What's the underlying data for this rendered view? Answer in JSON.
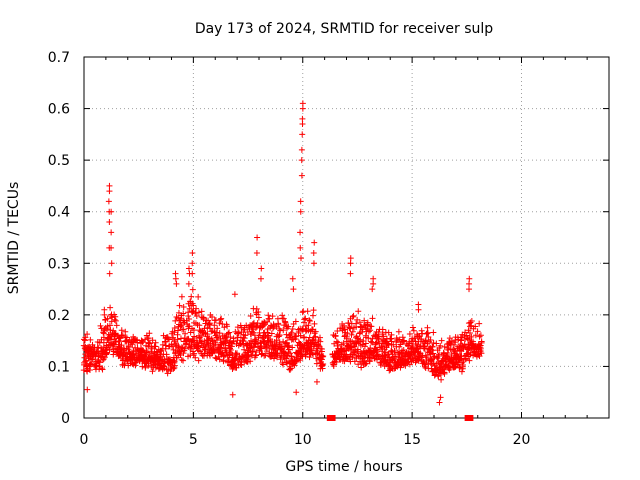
{
  "chart_data": {
    "type": "scatter",
    "title": "Day 173 of 2024, SRMTID for receiver sulp",
    "xlabel": "GPS time / hours",
    "ylabel": "SRMTID / TECUs",
    "xlim": [
      0,
      24
    ],
    "ylim": [
      0,
      0.7
    ],
    "xticks": [
      0,
      5,
      10,
      15,
      20
    ],
    "yticks": [
      0,
      0.1,
      0.2,
      0.3,
      0.4,
      0.5,
      0.6,
      0.7
    ],
    "grid": true,
    "marker": "plus",
    "series_color": "#ff0000",
    "envelope": [
      {
        "x": 0.0,
        "lo": 0.07,
        "hi": 0.19
      },
      {
        "x": 0.5,
        "lo": 0.08,
        "hi": 0.17
      },
      {
        "x": 0.9,
        "lo": 0.07,
        "hi": 0.22
      },
      {
        "x": 1.2,
        "lo": 0.1,
        "hi": 0.26
      },
      {
        "x": 1.6,
        "lo": 0.09,
        "hi": 0.2
      },
      {
        "x": 2.0,
        "lo": 0.08,
        "hi": 0.19
      },
      {
        "x": 2.5,
        "lo": 0.09,
        "hi": 0.17
      },
      {
        "x": 3.0,
        "lo": 0.07,
        "hi": 0.19
      },
      {
        "x": 3.5,
        "lo": 0.08,
        "hi": 0.17
      },
      {
        "x": 4.0,
        "lo": 0.06,
        "hi": 0.2
      },
      {
        "x": 4.4,
        "lo": 0.07,
        "hi": 0.27
      },
      {
        "x": 4.9,
        "lo": 0.09,
        "hi": 0.3
      },
      {
        "x": 5.3,
        "lo": 0.08,
        "hi": 0.26
      },
      {
        "x": 5.8,
        "lo": 0.1,
        "hi": 0.23
      },
      {
        "x": 6.3,
        "lo": 0.09,
        "hi": 0.22
      },
      {
        "x": 6.8,
        "lo": 0.07,
        "hi": 0.2
      },
      {
        "x": 7.3,
        "lo": 0.08,
        "hi": 0.21
      },
      {
        "x": 7.9,
        "lo": 0.09,
        "hi": 0.26
      },
      {
        "x": 8.5,
        "lo": 0.1,
        "hi": 0.22
      },
      {
        "x": 9.0,
        "lo": 0.08,
        "hi": 0.24
      },
      {
        "x": 9.6,
        "lo": 0.06,
        "hi": 0.21
      },
      {
        "x": 10.0,
        "lo": 0.09,
        "hi": 0.24
      },
      {
        "x": 10.5,
        "lo": 0.08,
        "hi": 0.26
      },
      {
        "x": 10.9,
        "lo": 0.07,
        "hi": 0.16
      },
      {
        "x": 11.6,
        "lo": 0.09,
        "hi": 0.2
      },
      {
        "x": 12.2,
        "lo": 0.08,
        "hi": 0.24
      },
      {
        "x": 12.8,
        "lo": 0.07,
        "hi": 0.23
      },
      {
        "x": 13.4,
        "lo": 0.09,
        "hi": 0.21
      },
      {
        "x": 14.0,
        "lo": 0.07,
        "hi": 0.19
      },
      {
        "x": 14.6,
        "lo": 0.08,
        "hi": 0.18
      },
      {
        "x": 15.2,
        "lo": 0.09,
        "hi": 0.2
      },
      {
        "x": 15.8,
        "lo": 0.07,
        "hi": 0.2
      },
      {
        "x": 16.2,
        "lo": 0.05,
        "hi": 0.17
      },
      {
        "x": 16.8,
        "lo": 0.08,
        "hi": 0.19
      },
      {
        "x": 17.3,
        "lo": 0.07,
        "hi": 0.19
      },
      {
        "x": 17.7,
        "lo": 0.1,
        "hi": 0.22
      },
      {
        "x": 18.2,
        "lo": 0.1,
        "hi": 0.2
      }
    ],
    "spikes": [
      {
        "x": 0.95,
        "values": [
          0.21,
          0.2,
          0.19
        ]
      },
      {
        "x": 1.15,
        "values": [
          0.28,
          0.33,
          0.38,
          0.4,
          0.42,
          0.44,
          0.45
        ]
      },
      {
        "x": 1.25,
        "values": [
          0.3,
          0.33,
          0.36,
          0.4
        ]
      },
      {
        "x": 4.2,
        "values": [
          0.26,
          0.27,
          0.28
        ]
      },
      {
        "x": 4.8,
        "values": [
          0.26,
          0.28,
          0.29
        ]
      },
      {
        "x": 4.95,
        "values": [
          0.28,
          0.3,
          0.32
        ]
      },
      {
        "x": 6.9,
        "values": [
          0.24
        ]
      },
      {
        "x": 7.9,
        "values": [
          0.32,
          0.35
        ]
      },
      {
        "x": 8.1,
        "values": [
          0.27,
          0.29
        ]
      },
      {
        "x": 9.55,
        "values": [
          0.25,
          0.27
        ]
      },
      {
        "x": 9.9,
        "values": [
          0.31,
          0.33,
          0.36,
          0.4,
          0.42
        ]
      },
      {
        "x": 9.95,
        "values": [
          0.47,
          0.5,
          0.52
        ]
      },
      {
        "x": 10.0,
        "values": [
          0.55,
          0.57,
          0.58,
          0.6,
          0.61
        ]
      },
      {
        "x": 10.5,
        "values": [
          0.3,
          0.32,
          0.34
        ]
      },
      {
        "x": 12.2,
        "values": [
          0.28,
          0.3,
          0.31
        ]
      },
      {
        "x": 13.2,
        "values": [
          0.25,
          0.26,
          0.27
        ]
      },
      {
        "x": 15.3,
        "values": [
          0.21,
          0.22
        ]
      },
      {
        "x": 17.6,
        "values": [
          0.25,
          0.26,
          0.27
        ]
      }
    ],
    "outliers": [
      {
        "x": 6.8,
        "y": 0.045
      },
      {
        "x": 16.25,
        "y": 0.03
      },
      {
        "x": 16.3,
        "y": 0.04
      },
      {
        "x": 9.7,
        "y": 0.05
      },
      {
        "x": 0.15,
        "y": 0.055
      },
      {
        "x": 10.65,
        "y": 0.07
      }
    ],
    "baseline_markers": [
      {
        "x_start": 11.1,
        "x_end": 11.5,
        "y": 0
      },
      {
        "x_start": 17.4,
        "x_end": 17.8,
        "y": 0
      }
    ]
  }
}
